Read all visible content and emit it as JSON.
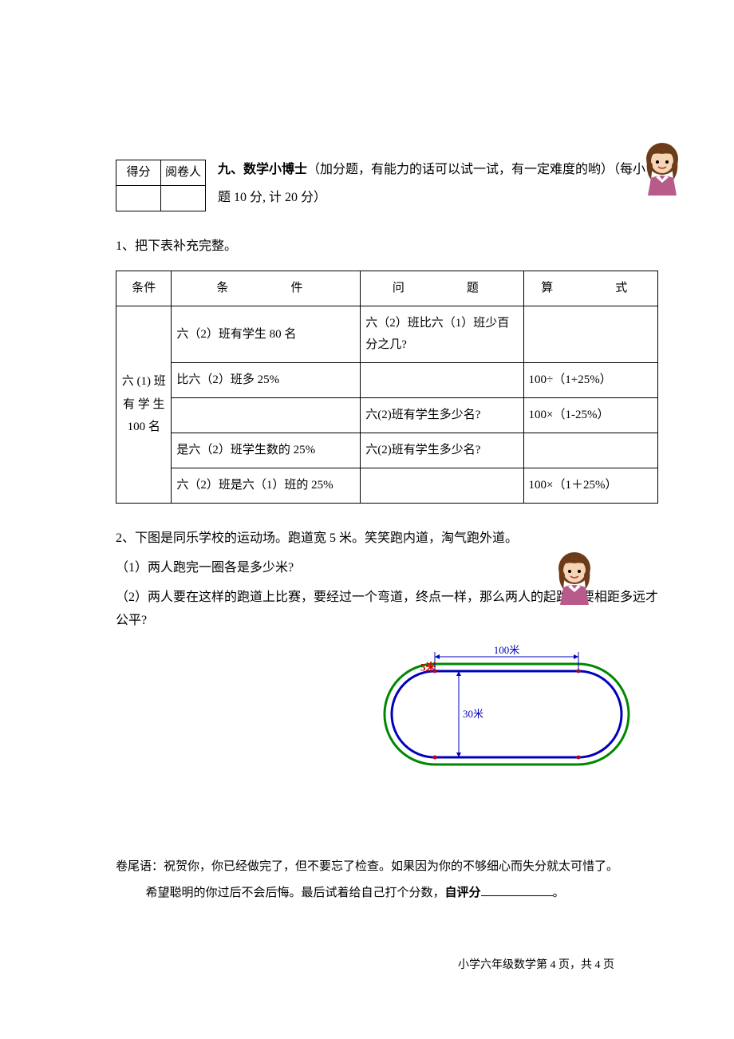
{
  "scoreBox": {
    "score": "得分",
    "marker": "阅卷人"
  },
  "section": {
    "prefix": "九、",
    "title": "数学小博士",
    "desc": "（加分题，有能力的话可以试一试，有一定难度的哟）（每小题 10 分, 计 20 分）"
  },
  "q1": {
    "title": "1、把下表补充完整。",
    "headers": {
      "c1": "条件",
      "c2": "条　　件",
      "c3": "问　　题",
      "c4": "算　　式"
    },
    "leftSpan": "六 (1) 班 有 学 生 100 名",
    "rows": [
      {
        "cond": "六（2）班有学生 80 名",
        "q": "六（2）班比六（1）班少百分之几?",
        "eq": ""
      },
      {
        "cond": "比六（2）班多 25%",
        "q": "",
        "eq": "100÷（1+25%）"
      },
      {
        "cond": "",
        "q": "六(2)班有学生多少名?",
        "eq": "100×（1-25%）"
      },
      {
        "cond": "是六（2）班学生数的 25%",
        "q": "六(2)班有学生多少名?",
        "eq": ""
      },
      {
        "cond": "六（2）班是六（1）班的 25%",
        "q": "",
        "eq": "100×（1＋25%）"
      }
    ]
  },
  "q2": {
    "intro": "2、下图是同乐学校的运动场。跑道宽 5 米。笑笑跑内道，淘气跑外道。",
    "p1": "（1）两人跑完一圈各是多少米?",
    "p2": "（2）两人要在这样的跑道上比赛，要经过一个弯道，终点一样，那么两人的起跑点要相距多远才公平?"
  },
  "track": {
    "outer_color": "#008800",
    "inner_color": "#0000bb",
    "dim_color": "#0000bb",
    "width_label": "5米",
    "width_label_color": "#cc0000",
    "top_label": "100米",
    "height_label": "30米",
    "straight_len": 100,
    "inner_radius": 30,
    "track_width": 5,
    "stroke_outer": 3,
    "stroke_inner": 3,
    "font_size": 13
  },
  "footer": {
    "line1": "卷尾语：祝贺你，你已经做完了，但不要忘了检查。如果因为你的不够细心而失分就太可惜了。",
    "line2a": "希望聪明的你过后不会后悔。最后试着给自己打个分数，",
    "selfLabel": "自评分",
    "period": "。"
  },
  "pageNum": "小学六年级数学第 4 页，共 4 页",
  "avatar": {
    "skin": "#f7d4b4",
    "hair": "#6b3b1a",
    "shirt": "#b85a8a",
    "collar": "#ffffff"
  }
}
